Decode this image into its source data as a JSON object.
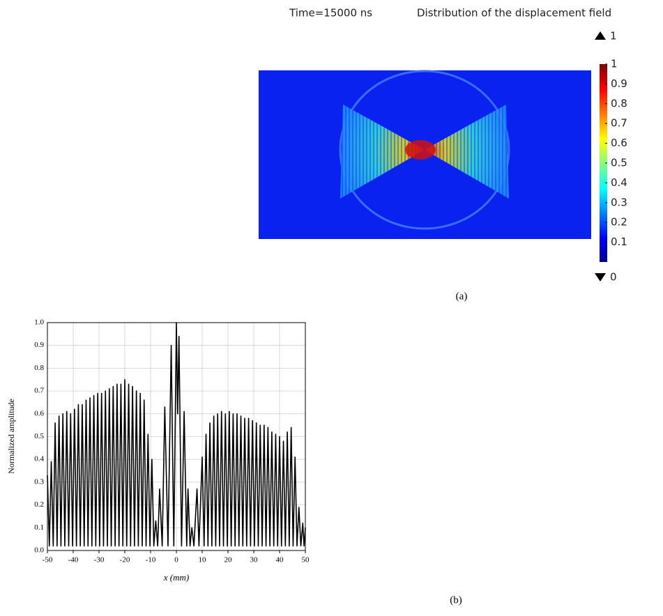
{
  "chart_data": [
    {
      "type": "field",
      "title": "Time=15000 ns",
      "subtitle": "Distribution of the displacement field",
      "max": 1,
      "min": 0,
      "clim": [
        0,
        1
      ],
      "cticks": [
        0.1,
        0.2,
        0.3,
        0.4,
        0.5,
        0.6,
        0.7,
        0.8,
        0.9,
        1
      ],
      "caption": "(a)"
    },
    {
      "type": "line",
      "ylabel": "Normalized amplitude",
      "xlabel": "x (mm)",
      "caption": "(b)",
      "color": "#000000",
      "grid": true,
      "xlim": [
        -50,
        50
      ],
      "xticks": [
        -50,
        -40,
        -30,
        -20,
        -10,
        0,
        10,
        20,
        30,
        40,
        50
      ],
      "ylim": [
        0,
        1
      ],
      "yticks": [
        {
          "value": 0,
          "label": "0.0"
        },
        0.1,
        0.2,
        0.3,
        0.4,
        0.5,
        0.6,
        0.7,
        0.8,
        0.9,
        {
          "value": 1,
          "label": "1.0"
        }
      ],
      "x": [
        -50,
        -49.25,
        -48.5,
        -47.75,
        -47,
        -46.25,
        -45.5,
        -44.75,
        -44,
        -43.25,
        -42.5,
        -41.75,
        -41,
        -40.25,
        -39.5,
        -38.75,
        -38,
        -37.25,
        -36.5,
        -35.75,
        -35,
        -34.25,
        -33.5,
        -32.75,
        -32,
        -31.25,
        -30.5,
        -29.75,
        -29,
        -28.25,
        -27.5,
        -26.75,
        -26,
        -25.25,
        -24.5,
        -23.75,
        -23,
        -22.25,
        -21.5,
        -20.75,
        -20,
        -19.25,
        -18.5,
        -17.75,
        -17,
        -16.25,
        -15.5,
        -14.75,
        -14,
        -13.25,
        -12.5,
        -11.75,
        -11,
        -10.25,
        -9.5,
        -8.75,
        -8,
        -7.25,
        -6.5,
        -5.5,
        -4.5,
        -3.25,
        -2,
        -1,
        0,
        0.5,
        1,
        2,
        3,
        4,
        4.5,
        5.3,
        6,
        6.8,
        8,
        8.75,
        10,
        10.75,
        11.5,
        12.25,
        13,
        13.75,
        14.5,
        15.25,
        16,
        16.75,
        17.5,
        18.25,
        19,
        19.75,
        20.5,
        21.25,
        22,
        22.75,
        23.5,
        24.25,
        25,
        25.75,
        26.5,
        27.25,
        28,
        28.75,
        29.5,
        30.25,
        31,
        31.75,
        32.5,
        33.25,
        34,
        34.75,
        35.5,
        36.25,
        37,
        37.75,
        38.5,
        39.25,
        40,
        40.75,
        41.5,
        42.25,
        43,
        43.75,
        44.5,
        45.25,
        46,
        46.75,
        47.5,
        48.25,
        49,
        49.5,
        50
      ],
      "values": [
        0.33,
        0.02,
        0.39,
        0.02,
        0.56,
        0.02,
        0.59,
        0.02,
        0.6,
        0.02,
        0.61,
        0.02,
        0.6,
        0.02,
        0.62,
        0.02,
        0.64,
        0.02,
        0.64,
        0.02,
        0.66,
        0.02,
        0.67,
        0.02,
        0.68,
        0.02,
        0.69,
        0.02,
        0.69,
        0.02,
        0.7,
        0.02,
        0.71,
        0.02,
        0.72,
        0.02,
        0.73,
        0.02,
        0.73,
        0.02,
        0.75,
        0.02,
        0.73,
        0.02,
        0.72,
        0.02,
        0.7,
        0.02,
        0.69,
        0.02,
        0.66,
        0.02,
        0.51,
        0.02,
        0.4,
        0.02,
        0.13,
        0.02,
        0.27,
        0.02,
        0.63,
        0.02,
        0.9,
        0.02,
        1.0,
        0.6,
        0.94,
        0.02,
        0.61,
        0.02,
        0.27,
        0.02,
        0.1,
        0.02,
        0.27,
        0.02,
        0.41,
        0.02,
        0.51,
        0.02,
        0.56,
        0.02,
        0.59,
        0.02,
        0.6,
        0.02,
        0.61,
        0.02,
        0.6,
        0.02,
        0.61,
        0.02,
        0.6,
        0.02,
        0.6,
        0.02,
        0.59,
        0.02,
        0.58,
        0.02,
        0.58,
        0.02,
        0.57,
        0.02,
        0.56,
        0.02,
        0.55,
        0.02,
        0.55,
        0.02,
        0.54,
        0.02,
        0.52,
        0.02,
        0.51,
        0.02,
        0.5,
        0.02,
        0.48,
        0.02,
        0.52,
        0.02,
        0.54,
        0.02,
        0.41,
        0.02,
        0.19,
        0.02,
        0.12,
        0.02,
        0.1
      ]
    }
  ]
}
